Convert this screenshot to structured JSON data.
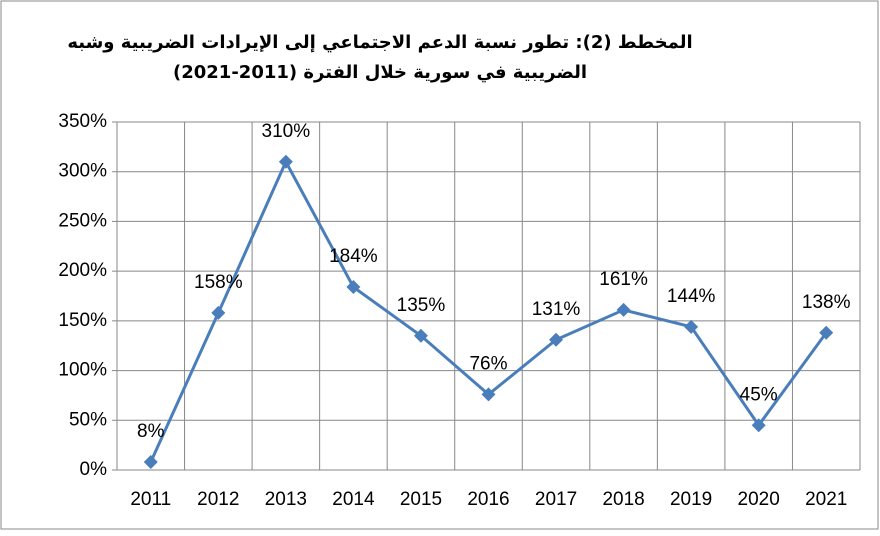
{
  "chart_data": {
    "type": "line",
    "title": [
      "المخطط (2): تطور نسبة الدعم الاجتماعي إلى الإيرادات الضريبية وشبه",
      "الضريبية في سورية خلال الفترة (2011-2021)"
    ],
    "categories": [
      "2011",
      "2012",
      "2013",
      "2014",
      "2015",
      "2016",
      "2017",
      "2018",
      "2019",
      "2020",
      "2021"
    ],
    "series": [
      {
        "color": "#4a7ebb",
        "values": [
          8,
          158,
          310,
          184,
          135,
          76,
          131,
          161,
          144,
          45,
          138
        ],
        "value_labels": [
          "8%",
          "158%",
          "310%",
          "184%",
          "135%",
          "76%",
          "131%",
          "161%",
          "144%",
          "45%",
          "138%"
        ]
      }
    ],
    "ylim": [
      0,
      350
    ],
    "yticks": [
      {
        "value": 0,
        "label": "0%"
      },
      {
        "value": 50,
        "label": "50%"
      },
      {
        "value": 100,
        "label": "100%"
      },
      {
        "value": 150,
        "label": "150%"
      },
      {
        "value": 200,
        "label": "200%"
      },
      {
        "value": 250,
        "label": "250%"
      },
      {
        "value": 300,
        "label": "300%"
      },
      {
        "value": 350,
        "label": "350%"
      }
    ],
    "grid": true
  }
}
